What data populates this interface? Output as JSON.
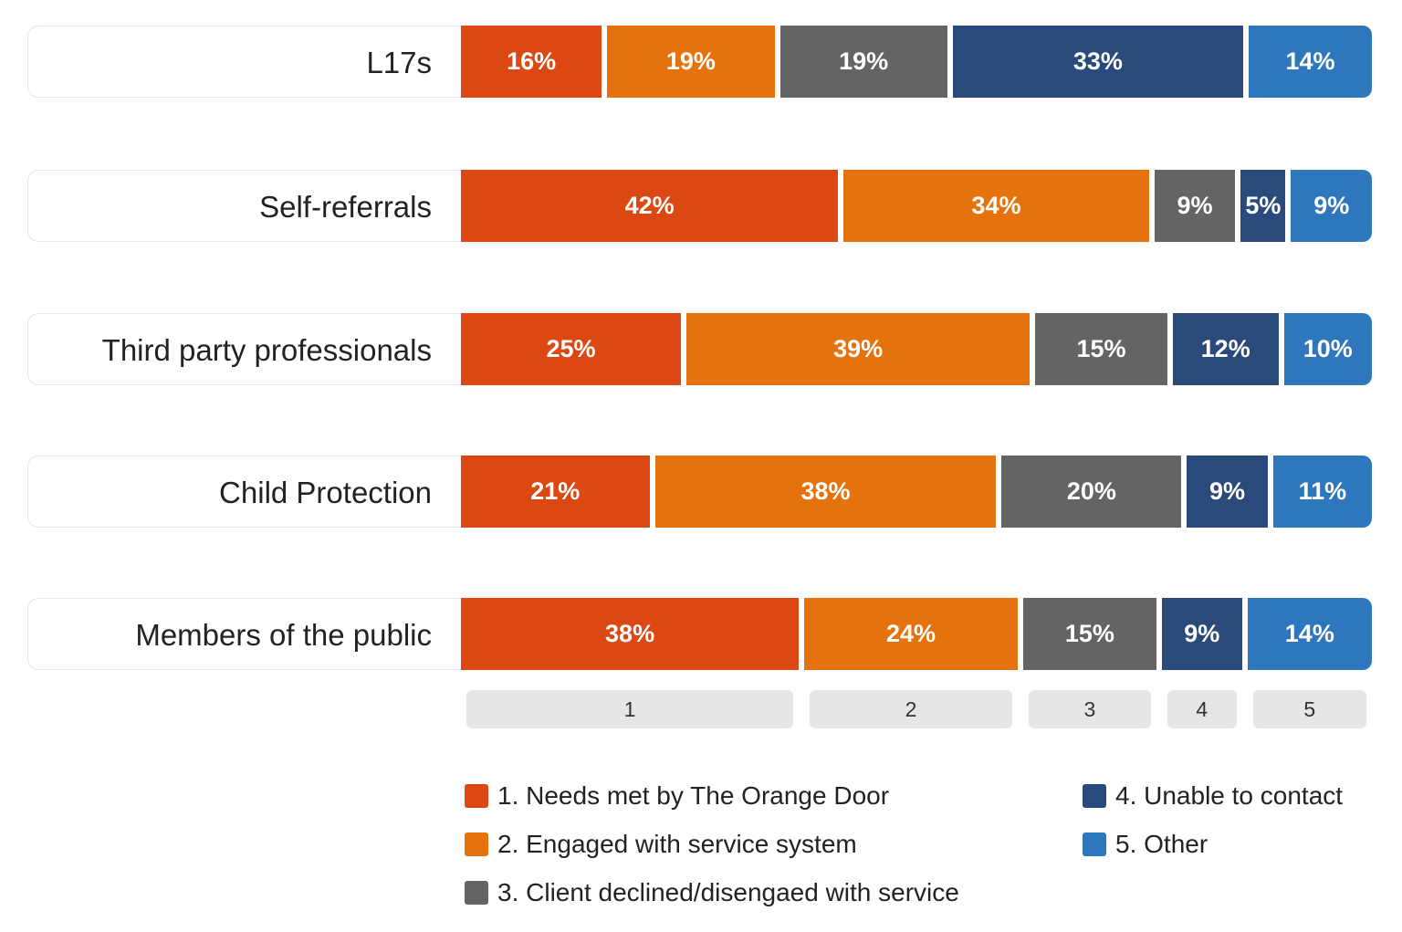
{
  "chart_data": {
    "type": "bar",
    "orientation": "horizontal",
    "stacked": true,
    "title": "",
    "xlabel": "",
    "ylabel": "",
    "categories": [
      "L17s",
      "Self-referrals",
      "Third party professionals",
      "Child Protection",
      "Members of the public"
    ],
    "series": [
      {
        "name": "1. Needs met by The Orange Door",
        "short": "1",
        "color": "#DC4814",
        "values": [
          16,
          42,
          25,
          21,
          38
        ]
      },
      {
        "name": "2. Engaged with service system",
        "short": "2",
        "color": "#E5720C",
        "values": [
          19,
          34,
          39,
          38,
          24
        ]
      },
      {
        "name": "3. Client declined/disengaed with service",
        "short": "3",
        "color": "#646462",
        "values": [
          19,
          9,
          15,
          20,
          15
        ]
      },
      {
        "name": "4. Unable to contact",
        "short": "4",
        "color": "#2B4A7C",
        "values": [
          33,
          5,
          12,
          9,
          9
        ]
      },
      {
        "name": "5. Other",
        "short": "5",
        "color": "#2E77BC",
        "values": [
          14,
          9,
          10,
          11,
          14
        ]
      }
    ],
    "value_suffix": "%",
    "legend_placement": "bottom",
    "grid": false
  }
}
